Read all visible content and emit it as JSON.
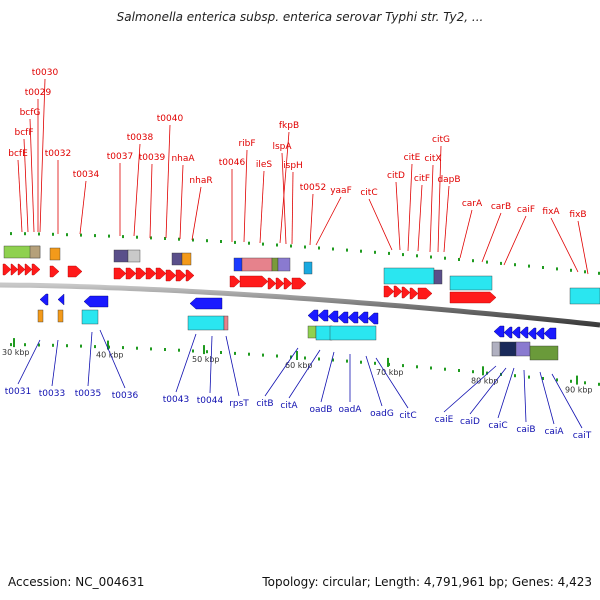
{
  "title": "Salmonella enterica subsp. enterica serovar Typhi str. Ty2, ...",
  "footer": {
    "accession": "Accession: NC_004631",
    "summary": "Topology: circular; Length: 4,791,961 bp; Genes: 4,423"
  },
  "colors": {
    "forward": "#ff1a1a",
    "reverse": "#1a1aff",
    "backbone": "#888888",
    "tick": "#1f9a1f",
    "top_label": "#e00000",
    "bottom_label": "#1010b0"
  },
  "scale_ticks": [
    "30 kbp",
    "40 kbp",
    "50 kbp",
    "60 kbp",
    "70 kbp",
    "80 kbp",
    "90 kbp"
  ],
  "top_genes": [
    "t0030",
    "t0029",
    "bcfG",
    "bcfF",
    "bcfE",
    "t0032",
    "t0034",
    "t0038",
    "t0037",
    "t0039",
    "t0040",
    "nhaA",
    "nhaR",
    "ribF",
    "t0046",
    "ileS",
    "fkpB",
    "lspA",
    "ispH",
    "t0052",
    "yaaF",
    "citC",
    "citD",
    "citE",
    "citF",
    "citX",
    "citG",
    "dapB",
    "carA",
    "carB",
    "caiF",
    "fixA",
    "fixB"
  ],
  "bottom_genes": [
    "t0031",
    "t0033",
    "t0035",
    "t0036",
    "t0043",
    "t0044",
    "rpsT",
    "citB",
    "citA",
    "oadB",
    "oadA",
    "oadG",
    "citC",
    "caiE",
    "caiD",
    "caiC",
    "caiB",
    "caiA",
    "caiT"
  ]
}
